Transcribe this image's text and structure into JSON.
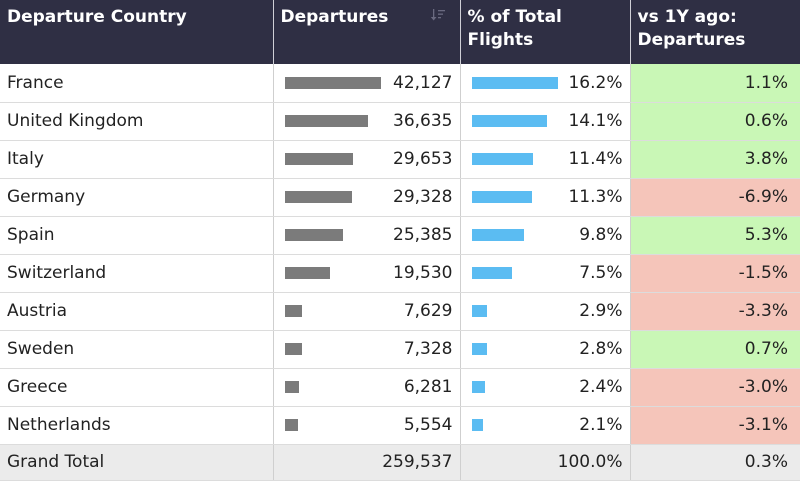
{
  "colors": {
    "header_bg": "#2f2f44",
    "departures_bar": "#7b7b7b",
    "share_bar": "#5bbcf2",
    "positive_bg": "#c9f7b6",
    "negative_bg": "#f5c5ba"
  },
  "header": {
    "country": "Departure Country",
    "departures": "Departures",
    "share": "% of Total Flights",
    "change": "vs 1Y ago: Departures",
    "sort_icon": "sort-icon"
  },
  "rows": [
    {
      "country": "France",
      "departures": "42,127",
      "departures_value": 42127,
      "share": "16.2%",
      "share_value": 16.2,
      "change": "1.1%",
      "trend": "pos"
    },
    {
      "country": "United Kingdom",
      "departures": "36,635",
      "departures_value": 36635,
      "share": "14.1%",
      "share_value": 14.1,
      "change": "0.6%",
      "trend": "pos"
    },
    {
      "country": "Italy",
      "departures": "29,653",
      "departures_value": 29653,
      "share": "11.4%",
      "share_value": 11.4,
      "change": "3.8%",
      "trend": "pos"
    },
    {
      "country": "Germany",
      "departures": "29,328",
      "departures_value": 29328,
      "share": "11.3%",
      "share_value": 11.3,
      "change": "-6.9%",
      "trend": "neg"
    },
    {
      "country": "Spain",
      "departures": "25,385",
      "departures_value": 25385,
      "share": "9.8%",
      "share_value": 9.8,
      "change": "5.3%",
      "trend": "pos"
    },
    {
      "country": "Switzerland",
      "departures": "19,530",
      "departures_value": 19530,
      "share": "7.5%",
      "share_value": 7.5,
      "change": "-1.5%",
      "trend": "neg"
    },
    {
      "country": "Austria",
      "departures": "7,629",
      "departures_value": 7629,
      "share": "2.9%",
      "share_value": 2.9,
      "change": "-3.3%",
      "trend": "neg"
    },
    {
      "country": "Sweden",
      "departures": "7,328",
      "departures_value": 7328,
      "share": "2.8%",
      "share_value": 2.8,
      "change": "0.7%",
      "trend": "pos"
    },
    {
      "country": "Greece",
      "departures": "6,281",
      "departures_value": 6281,
      "share": "2.4%",
      "share_value": 2.4,
      "change": "-3.0%",
      "trend": "neg"
    },
    {
      "country": "Netherlands",
      "departures": "5,554",
      "departures_value": 5554,
      "share": "2.1%",
      "share_value": 2.1,
      "change": "-3.1%",
      "trend": "neg"
    }
  ],
  "footer": {
    "label": "Grand Total",
    "departures": "259,537",
    "share": "100.0%",
    "change": "0.3%"
  }
}
